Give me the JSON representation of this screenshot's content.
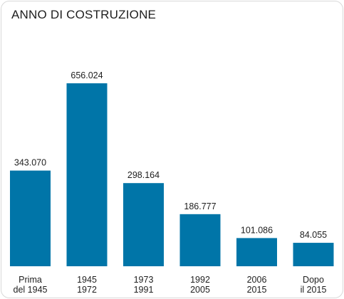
{
  "chart_data": {
    "type": "bar",
    "title": "ANNO DI COSTRUZIONE",
    "categories": [
      [
        "Prima",
        "del 1945"
      ],
      [
        "1945",
        "1972"
      ],
      [
        "1973",
        "1991"
      ],
      [
        "1992",
        "2005"
      ],
      [
        "2006",
        "2015"
      ],
      [
        "Dopo",
        "il 2015"
      ]
    ],
    "values": [
      343070,
      656024,
      298164,
      186777,
      101086,
      84055
    ],
    "value_labels": [
      "343.070",
      "656.024",
      "298.164",
      "186.777",
      "101.086",
      "84.055"
    ],
    "ylim": [
      0,
      656024
    ],
    "grid": false,
    "bar_color": "#0075a8"
  }
}
